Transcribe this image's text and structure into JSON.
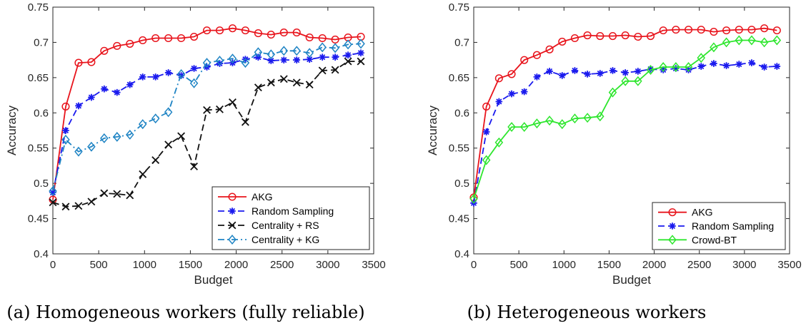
{
  "chart_data": [
    {
      "type": "line",
      "caption": "(a) Homogeneous workers (fully reliable)",
      "xlabel": "Budget",
      "ylabel": "Accuracy",
      "xlim": [
        0,
        3500
      ],
      "ylim": [
        0.4,
        0.75
      ],
      "xticks": [
        "0",
        "500",
        "1000",
        "1500",
        "2000",
        "2500",
        "3000",
        "3500"
      ],
      "yticks": [
        "0.4",
        "0.45",
        "0.5",
        "0.55",
        "0.6",
        "0.65",
        "0.7",
        "0.75"
      ],
      "grid": false,
      "legend_position": "bottom-right",
      "x": [
        0,
        140,
        280,
        420,
        560,
        700,
        840,
        980,
        1120,
        1260,
        1400,
        1540,
        1680,
        1820,
        1960,
        2100,
        2240,
        2380,
        2520,
        2660,
        2800,
        2940,
        3080,
        3220,
        3360
      ],
      "series": [
        {
          "name": "AKG",
          "color": "#e8141c",
          "marker": "circle",
          "dash": "solid",
          "values": [
            0.477,
            0.609,
            0.671,
            0.672,
            0.688,
            0.695,
            0.698,
            0.703,
            0.706,
            0.706,
            0.706,
            0.708,
            0.717,
            0.717,
            0.72,
            0.717,
            0.713,
            0.711,
            0.714,
            0.714,
            0.707,
            0.706,
            0.704,
            0.707,
            0.708
          ]
        },
        {
          "name": "Random Sampling",
          "color": "#1a1aee",
          "marker": "star",
          "dash": "dashed",
          "values": [
            0.487,
            0.575,
            0.61,
            0.622,
            0.634,
            0.629,
            0.64,
            0.651,
            0.651,
            0.657,
            0.653,
            0.663,
            0.665,
            0.67,
            0.671,
            0.676,
            0.679,
            0.674,
            0.675,
            0.675,
            0.676,
            0.679,
            0.679,
            0.682,
            0.685
          ]
        },
        {
          "name": "Centrality + RS",
          "color": "#111111",
          "marker": "x",
          "dash": "dashed",
          "values": [
            0.473,
            0.467,
            0.468,
            0.474,
            0.486,
            0.485,
            0.483,
            0.513,
            0.533,
            0.555,
            0.567,
            0.524,
            0.604,
            0.605,
            0.615,
            0.587,
            0.636,
            0.643,
            0.648,
            0.643,
            0.64,
            0.66,
            0.661,
            0.673,
            0.673
          ]
        },
        {
          "name": "Centrality + KG",
          "color": "#1f84c4",
          "marker": "diamond",
          "dash": "dashdot",
          "values": [
            0.489,
            0.562,
            0.545,
            0.552,
            0.564,
            0.566,
            0.569,
            0.584,
            0.592,
            0.601,
            0.655,
            0.642,
            0.671,
            0.674,
            0.677,
            0.671,
            0.686,
            0.683,
            0.688,
            0.688,
            0.685,
            0.693,
            0.692,
            0.697,
            0.698
          ]
        }
      ]
    },
    {
      "type": "line",
      "caption": "(b) Heterogeneous workers",
      "xlabel": "Budget",
      "ylabel": "Accuracy",
      "xlim": [
        0,
        3500
      ],
      "ylim": [
        0.4,
        0.75
      ],
      "xticks": [
        "0",
        "500",
        "1000",
        "1500",
        "2000",
        "2500",
        "3000",
        "3500"
      ],
      "yticks": [
        "0.4",
        "0.45",
        "0.5",
        "0.55",
        "0.6",
        "0.65",
        "0.7",
        "0.75"
      ],
      "grid": false,
      "legend_position": "bottom-right",
      "x": [
        0,
        140,
        280,
        420,
        560,
        700,
        840,
        980,
        1120,
        1260,
        1400,
        1540,
        1680,
        1820,
        1960,
        2100,
        2240,
        2380,
        2520,
        2660,
        2800,
        2940,
        3080,
        3220,
        3360
      ],
      "series": [
        {
          "name": "AKG",
          "color": "#e8141c",
          "marker": "circle",
          "dash": "solid",
          "values": [
            0.48,
            0.609,
            0.649,
            0.655,
            0.675,
            0.682,
            0.69,
            0.701,
            0.706,
            0.71,
            0.709,
            0.709,
            0.71,
            0.708,
            0.709,
            0.717,
            0.718,
            0.718,
            0.718,
            0.715,
            0.717,
            0.718,
            0.718,
            0.72,
            0.717
          ]
        },
        {
          "name": "Random Sampling",
          "color": "#1a1aee",
          "marker": "star",
          "dash": "dashed",
          "values": [
            0.472,
            0.573,
            0.616,
            0.627,
            0.63,
            0.651,
            0.659,
            0.653,
            0.66,
            0.655,
            0.656,
            0.66,
            0.657,
            0.659,
            0.662,
            0.661,
            0.663,
            0.661,
            0.666,
            0.67,
            0.667,
            0.669,
            0.671,
            0.665,
            0.666
          ]
        },
        {
          "name": "Crowd-BT",
          "color": "#2ee62e",
          "marker": "diamond",
          "dash": "solid",
          "values": [
            0.478,
            0.533,
            0.558,
            0.58,
            0.58,
            0.585,
            0.589,
            0.584,
            0.592,
            0.593,
            0.595,
            0.629,
            0.645,
            0.645,
            0.661,
            0.665,
            0.665,
            0.665,
            0.678,
            0.693,
            0.7,
            0.703,
            0.703,
            0.7,
            0.703
          ]
        }
      ]
    }
  ]
}
